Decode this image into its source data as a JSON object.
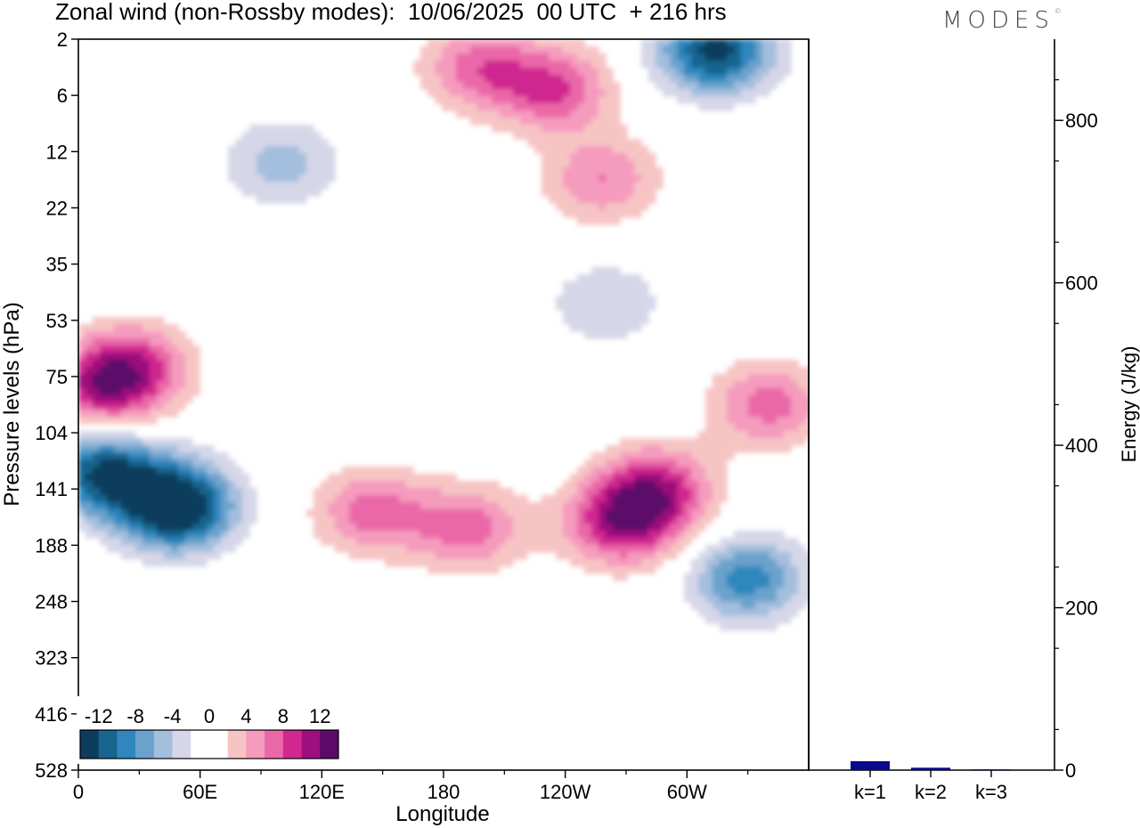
{
  "header": {
    "title": "Zonal wind (non-Rossby modes):  10/06/2025  00 UTC  + 216 hrs",
    "brand": "MODES",
    "brand_mark": "©"
  },
  "chart_data": [
    {
      "type": "heatmap",
      "xlabel": "Longitude",
      "ylabel": "Pressure levels (hPa)",
      "x_ticks": [
        "0",
        "60E",
        "120E",
        "180",
        "120W",
        "60W"
      ],
      "x_tick_values": [
        0,
        60,
        120,
        180,
        240,
        300
      ],
      "x_range": [
        0,
        360
      ],
      "y_ticks": [
        "2",
        "6",
        "12",
        "22",
        "35",
        "53",
        "75",
        "104",
        "141",
        "188",
        "248",
        "323",
        "416",
        "528"
      ],
      "colorbar": {
        "labels": [
          "-12",
          "-8",
          "-4",
          "0",
          "4",
          "8",
          "12"
        ],
        "levels": [
          -14,
          -12,
          -10,
          -8,
          -6,
          -4,
          -2,
          0,
          2,
          4,
          6,
          8,
          10,
          12,
          14
        ],
        "colors": [
          "#0d3d5c",
          "#17648f",
          "#2f87bd",
          "#6aa2cc",
          "#a4bedd",
          "#d5d7e8",
          "#ffffff",
          "#ffffff",
          "#f7c4c4",
          "#f59bbd",
          "#ea67a8",
          "#d0288f",
          "#9c0f7c",
          "#5c0a6a"
        ]
      },
      "features": [
        {
          "lon": 48,
          "level_index": 8.3,
          "value": -16
        },
        {
          "lon": 12,
          "level_index": 7.7,
          "value": -12
        },
        {
          "lon": 330,
          "level_index": 9.6,
          "value": -9
        },
        {
          "lon": 12,
          "level_index": 6.2,
          "value": 9
        },
        {
          "lon": 28,
          "level_index": 5.8,
          "value": 7
        },
        {
          "lon": 145,
          "level_index": 8.4,
          "value": 7
        },
        {
          "lon": 268,
          "level_index": 8.6,
          "value": 10
        },
        {
          "lon": 285,
          "level_index": 8.0,
          "value": 9
        },
        {
          "lon": 192,
          "level_index": 8.7,
          "value": 7
        },
        {
          "lon": 340,
          "level_index": 6.5,
          "value": 7
        },
        {
          "lon": 198,
          "level_index": 0.5,
          "value": 7
        },
        {
          "lon": 235,
          "level_index": 0.9,
          "value": 8
        },
        {
          "lon": 258,
          "level_index": 2.5,
          "value": 6
        },
        {
          "lon": 314,
          "level_index": 0.2,
          "value": -13
        },
        {
          "lon": 100,
          "level_index": 2.2,
          "value": -5
        },
        {
          "lon": 260,
          "level_index": 4.7,
          "value": -4
        }
      ]
    },
    {
      "type": "bar",
      "categories": [
        "k=1",
        "k=2",
        "k=3"
      ],
      "values": [
        11,
        3,
        1
      ],
      "ylabel": "Energy (J/kg)",
      "yticks": [
        "0",
        "200",
        "400",
        "600",
        "800"
      ],
      "ylim": [
        0,
        900
      ],
      "bar_color": "#0a0a8c"
    }
  ]
}
